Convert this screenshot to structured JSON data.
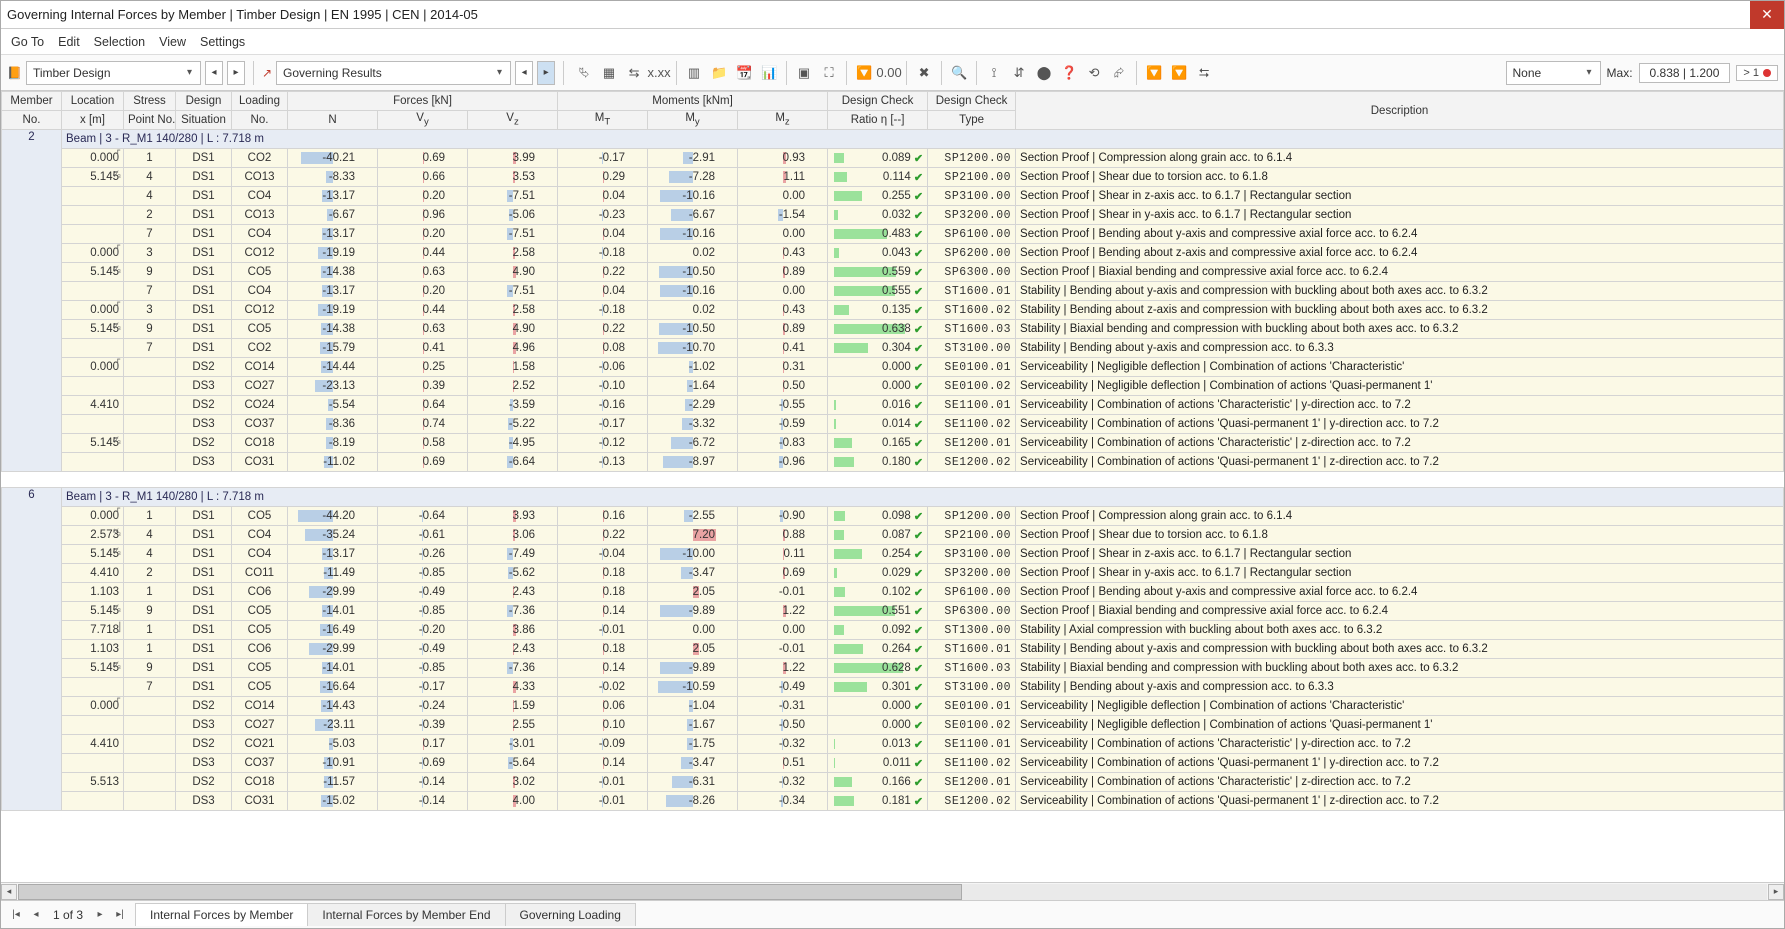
{
  "window": {
    "title": "Governing Internal Forces by Member | Timber Design | EN 1995 | CEN | 2014-05"
  },
  "menu": [
    "Go To",
    "Edit",
    "Selection",
    "View",
    "Settings"
  ],
  "toolbar": {
    "left_dropdown": "Timber Design",
    "mid_dropdown": "Governing Results",
    "filter_dropdown": "None",
    "max_label": "Max:",
    "max_value": "0.838 | 1.200",
    "limit_pill": "> 1"
  },
  "icons": [
    "⮱",
    "▦",
    "⇆",
    "x.xx",
    "▥",
    "📁",
    "📆",
    "📊",
    "▣",
    "⛶",
    "🔽",
    "0.00",
    "✖",
    "🔍",
    "⟟",
    "⇵",
    "⬤",
    "❓",
    "⟲",
    "⮳",
    "🔽",
    "🔽",
    "⮀"
  ],
  "columns": {
    "memno_top": "Member",
    "memno_bot": "No.",
    "loc_top": "Location",
    "loc_bot": "x [m]",
    "sp_top": "Stress",
    "sp_bot": "Point No.",
    "ds_top": "Design",
    "ds_bot": "Situation",
    "lo_top": "Loading",
    "lo_bot": "No.",
    "forces_label": "Forces [kN]",
    "n": "N",
    "vy": "Vy",
    "vz": "Vz",
    "moments_label": "Moments [kNm]",
    "mt": "MT",
    "my": "My",
    "mz": "Mz",
    "ratio_top": "Design Check",
    "ratio_bot": "Ratio η [--]",
    "type_top": "Design Check",
    "type_bot": "Type",
    "desc": "Description"
  },
  "norm": {
    "force": 50,
    "moment": 12,
    "ratio": 0.7
  },
  "colors": {
    "neg_bar": "#b9cfe6",
    "pos_bar": "#e9a3a3",
    "ratio_bar": "#9be29b",
    "row_bg": "#fbf9e6",
    "header_bg": "#e7ecf4"
  },
  "groups": [
    {
      "member_no": "2",
      "title": "Beam | 3 - R_M1 140/280 | L : 7.718 m",
      "rows": [
        {
          "loc": "0.000",
          "sym": "⎡",
          "sp": "1",
          "ds": "DS1",
          "lo": "CO2",
          "N": -40.21,
          "Vy": 0.69,
          "Vz": 3.99,
          "MT": -0.17,
          "My": -2.91,
          "Mz": 0.93,
          "ratio": 0.089,
          "type": "SP1200.00",
          "desc": "Section Proof | Compression along grain acc. to 6.1.4"
        },
        {
          "loc": "5.145",
          "sym": "²⁄₃",
          "sp": "4",
          "ds": "DS1",
          "lo": "CO13",
          "N": -8.33,
          "Vy": 0.66,
          "Vz": 3.53,
          "MT": 0.29,
          "My": -7.28,
          "Mz": 1.11,
          "ratio": 0.114,
          "type": "SP2100.00",
          "desc": "Section Proof | Shear due to torsion acc. to 6.1.8"
        },
        {
          "loc": "",
          "sym": "",
          "sp": "4",
          "ds": "DS1",
          "lo": "CO4",
          "N": -13.17,
          "Vy": 0.2,
          "Vz": -7.51,
          "MT": 0.04,
          "My": -10.16,
          "Mz": 0.0,
          "ratio": 0.255,
          "type": "SP3100.00",
          "desc": "Section Proof | Shear in z-axis acc. to 6.1.7 | Rectangular section"
        },
        {
          "loc": "",
          "sym": "",
          "sp": "2",
          "ds": "DS1",
          "lo": "CO13",
          "N": -6.67,
          "Vy": 0.96,
          "Vz": -5.06,
          "MT": -0.23,
          "My": -6.67,
          "Mz": -1.54,
          "ratio": 0.032,
          "type": "SP3200.00",
          "desc": "Section Proof | Shear in y-axis acc. to 6.1.7 | Rectangular section"
        },
        {
          "loc": "",
          "sym": "",
          "sp": "7",
          "ds": "DS1",
          "lo": "CO4",
          "N": -13.17,
          "Vy": 0.2,
          "Vz": -7.51,
          "MT": 0.04,
          "My": -10.16,
          "Mz": 0.0,
          "ratio": 0.483,
          "type": "SP6100.00",
          "desc": "Section Proof | Bending about y-axis and compressive axial force acc. to 6.2.4"
        },
        {
          "loc": "0.000",
          "sym": "⎡",
          "sp": "3",
          "ds": "DS1",
          "lo": "CO12",
          "N": -19.19,
          "Vy": 0.44,
          "Vz": 2.58,
          "MT": -0.18,
          "My": 0.02,
          "Mz": 0.43,
          "ratio": 0.043,
          "type": "SP6200.00",
          "desc": "Section Proof | Bending about z-axis and compressive axial force acc. to 6.2.4"
        },
        {
          "loc": "5.145",
          "sym": "²⁄₃",
          "sp": "9",
          "ds": "DS1",
          "lo": "CO5",
          "N": -14.38,
          "Vy": 0.63,
          "Vz": 4.9,
          "MT": 0.22,
          "My": -10.5,
          "Mz": 0.89,
          "ratio": 0.559,
          "type": "SP6300.00",
          "desc": "Section Proof | Biaxial bending and compressive axial force acc. to 6.2.4"
        },
        {
          "loc": "",
          "sym": "",
          "sp": "7",
          "ds": "DS1",
          "lo": "CO4",
          "N": -13.17,
          "Vy": 0.2,
          "Vz": -7.51,
          "MT": 0.04,
          "My": -10.16,
          "Mz": 0.0,
          "ratio": 0.555,
          "type": "ST1600.01",
          "desc": "Stability | Bending about y-axis and compression with buckling about both axes acc. to 6.3.2"
        },
        {
          "loc": "0.000",
          "sym": "⎡",
          "sp": "3",
          "ds": "DS1",
          "lo": "CO12",
          "N": -19.19,
          "Vy": 0.44,
          "Vz": 2.58,
          "MT": -0.18,
          "My": 0.02,
          "Mz": 0.43,
          "ratio": 0.135,
          "type": "ST1600.02",
          "desc": "Stability | Bending about z-axis and compression with buckling about both axes acc. to 6.3.2"
        },
        {
          "loc": "5.145",
          "sym": "²⁄₃",
          "sp": "9",
          "ds": "DS1",
          "lo": "CO5",
          "N": -14.38,
          "Vy": 0.63,
          "Vz": 4.9,
          "MT": 0.22,
          "My": -10.5,
          "Mz": 0.89,
          "ratio": 0.638,
          "type": "ST1600.03",
          "desc": "Stability | Biaxial bending and compression with buckling about both axes acc. to 6.3.2"
        },
        {
          "loc": "",
          "sym": "",
          "sp": "7",
          "ds": "DS1",
          "lo": "CO2",
          "N": -15.79,
          "Vy": 0.41,
          "Vz": 4.96,
          "MT": 0.08,
          "My": -10.7,
          "Mz": 0.41,
          "ratio": 0.304,
          "type": "ST3100.00",
          "desc": "Stability | Bending about y-axis and compression acc. to 6.3.3"
        },
        {
          "loc": "0.000",
          "sym": "⎡",
          "sp": "",
          "ds": "DS2",
          "lo": "CO14",
          "N": -14.44,
          "Vy": 0.25,
          "Vz": 1.58,
          "MT": -0.06,
          "My": -1.02,
          "Mz": 0.31,
          "ratio": 0.0,
          "type": "SE0100.01",
          "desc": "Serviceability | Negligible deflection | Combination of actions 'Characteristic'"
        },
        {
          "loc": "",
          "sym": "",
          "sp": "",
          "ds": "DS3",
          "lo": "CO27",
          "N": -23.13,
          "Vy": 0.39,
          "Vz": 2.52,
          "MT": -0.1,
          "My": -1.64,
          "Mz": 0.5,
          "ratio": 0.0,
          "type": "SE0100.02",
          "desc": "Serviceability | Negligible deflection | Combination of actions 'Quasi-permanent 1'"
        },
        {
          "loc": "4.410",
          "sym": "",
          "sp": "",
          "ds": "DS2",
          "lo": "CO24",
          "N": -5.54,
          "Vy": 0.64,
          "Vz": -3.59,
          "MT": -0.16,
          "My": -2.29,
          "Mz": -0.55,
          "ratio": 0.016,
          "type": "SE1100.01",
          "desc": "Serviceability | Combination of actions 'Characteristic' | y-direction acc. to 7.2"
        },
        {
          "loc": "",
          "sym": "",
          "sp": "",
          "ds": "DS3",
          "lo": "CO37",
          "N": -8.36,
          "Vy": 0.74,
          "Vz": -5.22,
          "MT": -0.17,
          "My": -3.32,
          "Mz": -0.59,
          "ratio": 0.014,
          "type": "SE1100.02",
          "desc": "Serviceability | Combination of actions 'Quasi-permanent 1' | y-direction acc. to 7.2"
        },
        {
          "loc": "5.145",
          "sym": "²⁄₃",
          "sp": "",
          "ds": "DS2",
          "lo": "CO18",
          "N": -8.19,
          "Vy": 0.58,
          "Vz": -4.95,
          "MT": -0.12,
          "My": -6.72,
          "Mz": -0.83,
          "ratio": 0.165,
          "type": "SE1200.01",
          "desc": "Serviceability | Combination of actions 'Characteristic' | z-direction acc. to 7.2"
        },
        {
          "loc": "",
          "sym": "",
          "sp": "",
          "ds": "DS3",
          "lo": "CO31",
          "N": -11.02,
          "Vy": 0.69,
          "Vz": -6.64,
          "MT": -0.13,
          "My": -8.97,
          "Mz": -0.96,
          "ratio": 0.18,
          "type": "SE1200.02",
          "desc": "Serviceability | Combination of actions 'Quasi-permanent 1' | z-direction acc. to 7.2"
        }
      ]
    },
    {
      "member_no": "6",
      "title": "Beam | 3 - R_M1 140/280 | L : 7.718 m",
      "rows": [
        {
          "loc": "0.000",
          "sym": "⎡",
          "sp": "1",
          "ds": "DS1",
          "lo": "CO5",
          "N": -44.2,
          "Vy": -0.64,
          "Vz": 3.93,
          "MT": 0.16,
          "My": -2.55,
          "Mz": -0.9,
          "ratio": 0.098,
          "type": "SP1200.00",
          "desc": "Section Proof | Compression along grain acc. to 6.1.4"
        },
        {
          "loc": "2.573",
          "sym": "¹⁄₃",
          "sp": "4",
          "ds": "DS1",
          "lo": "CO4",
          "N": -35.24,
          "Vy": -0.61,
          "Vz": 3.06,
          "MT": 0.22,
          "My": 7.2,
          "Mz": 0.88,
          "ratio": 0.087,
          "type": "SP2100.00",
          "desc": "Section Proof | Shear due to torsion acc. to 6.1.8"
        },
        {
          "loc": "5.145",
          "sym": "²⁄₃",
          "sp": "4",
          "ds": "DS1",
          "lo": "CO4",
          "N": -13.17,
          "Vy": -0.26,
          "Vz": -7.49,
          "MT": -0.04,
          "My": -10.0,
          "Mz": 0.11,
          "ratio": 0.254,
          "type": "SP3100.00",
          "desc": "Section Proof | Shear in z-axis acc. to 6.1.7 | Rectangular section"
        },
        {
          "loc": "4.410",
          "sym": "",
          "sp": "2",
          "ds": "DS1",
          "lo": "CO11",
          "N": -11.49,
          "Vy": -0.85,
          "Vz": -5.62,
          "MT": 0.18,
          "My": -3.47,
          "Mz": 0.69,
          "ratio": 0.029,
          "type": "SP3200.00",
          "desc": "Section Proof | Shear in y-axis acc. to 6.1.7 | Rectangular section"
        },
        {
          "loc": "1.103",
          "sym": "",
          "sp": "1",
          "ds": "DS1",
          "lo": "CO6",
          "N": -29.99,
          "Vy": -0.49,
          "Vz": 2.43,
          "MT": 0.18,
          "My": 2.05,
          "Mz": -0.01,
          "ratio": 0.102,
          "type": "SP6100.00",
          "desc": "Section Proof | Bending about y-axis and compressive axial force acc. to 6.2.4"
        },
        {
          "loc": "5.145",
          "sym": "²⁄₃",
          "sp": "9",
          "ds": "DS1",
          "lo": "CO5",
          "N": -14.01,
          "Vy": -0.85,
          "Vz": -7.36,
          "MT": 0.14,
          "My": -9.89,
          "Mz": 1.22,
          "ratio": 0.551,
          "type": "SP6300.00",
          "desc": "Section Proof | Biaxial bending and compressive axial force acc. to 6.2.4"
        },
        {
          "loc": "7.718",
          "sym": "⎦",
          "sp": "1",
          "ds": "DS1",
          "lo": "CO5",
          "N": -16.49,
          "Vy": -0.2,
          "Vz": 3.86,
          "MT": -0.01,
          "My": 0.0,
          "Mz": 0.0,
          "ratio": 0.092,
          "type": "ST1300.00",
          "desc": "Stability | Axial compression with buckling about both axes acc. to 6.3.2"
        },
        {
          "loc": "1.103",
          "sym": "",
          "sp": "1",
          "ds": "DS1",
          "lo": "CO6",
          "N": -29.99,
          "Vy": -0.49,
          "Vz": 2.43,
          "MT": 0.18,
          "My": 2.05,
          "Mz": -0.01,
          "ratio": 0.264,
          "type": "ST1600.01",
          "desc": "Stability | Bending about y-axis and compression with buckling about both axes acc. to 6.3.2"
        },
        {
          "loc": "5.145",
          "sym": "²⁄₃",
          "sp": "9",
          "ds": "DS1",
          "lo": "CO5",
          "N": -14.01,
          "Vy": -0.85,
          "Vz": -7.36,
          "MT": 0.14,
          "My": -9.89,
          "Mz": 1.22,
          "ratio": 0.628,
          "type": "ST1600.03",
          "desc": "Stability | Biaxial bending and compression with buckling about both axes acc. to 6.3.2"
        },
        {
          "loc": "",
          "sym": "",
          "sp": "7",
          "ds": "DS1",
          "lo": "CO5",
          "N": -16.64,
          "Vy": -0.17,
          "Vz": 4.33,
          "MT": -0.02,
          "My": -10.59,
          "Mz": -0.49,
          "ratio": 0.301,
          "type": "ST3100.00",
          "desc": "Stability | Bending about y-axis and compression acc. to 6.3.3"
        },
        {
          "loc": "0.000",
          "sym": "⎡",
          "sp": "",
          "ds": "DS2",
          "lo": "CO14",
          "N": -14.43,
          "Vy": -0.24,
          "Vz": 1.59,
          "MT": 0.06,
          "My": -1.04,
          "Mz": -0.31,
          "ratio": 0.0,
          "type": "SE0100.01",
          "desc": "Serviceability | Negligible deflection | Combination of actions 'Characteristic'"
        },
        {
          "loc": "",
          "sym": "",
          "sp": "",
          "ds": "DS3",
          "lo": "CO27",
          "N": -23.11,
          "Vy": -0.39,
          "Vz": 2.55,
          "MT": 0.1,
          "My": -1.67,
          "Mz": -0.5,
          "ratio": 0.0,
          "type": "SE0100.02",
          "desc": "Serviceability | Negligible deflection | Combination of actions 'Quasi-permanent 1'"
        },
        {
          "loc": "4.410",
          "sym": "",
          "sp": "",
          "ds": "DS2",
          "lo": "CO21",
          "N": -5.03,
          "Vy": 0.17,
          "Vz": -3.01,
          "MT": -0.09,
          "My": -1.75,
          "Mz": -0.32,
          "ratio": 0.013,
          "type": "SE1100.01",
          "desc": "Serviceability | Combination of actions 'Characteristic' | y-direction acc. to 7.2"
        },
        {
          "loc": "",
          "sym": "",
          "sp": "",
          "ds": "DS3",
          "lo": "CO37",
          "N": -10.91,
          "Vy": -0.69,
          "Vz": -5.64,
          "MT": 0.14,
          "My": -3.47,
          "Mz": 0.51,
          "ratio": 0.011,
          "type": "SE1100.02",
          "desc": "Serviceability | Combination of actions 'Quasi-permanent 1' | y-direction acc. to 7.2"
        },
        {
          "loc": "5.513",
          "sym": "",
          "sp": "",
          "ds": "DS2",
          "lo": "CO18",
          "N": -11.57,
          "Vy": -0.14,
          "Vz": 3.02,
          "MT": -0.01,
          "My": -6.31,
          "Mz": -0.32,
          "ratio": 0.166,
          "type": "SE1200.01",
          "desc": "Serviceability | Combination of actions 'Characteristic' | z-direction acc. to 7.2"
        },
        {
          "loc": "",
          "sym": "",
          "sp": "",
          "ds": "DS3",
          "lo": "CO31",
          "N": -15.02,
          "Vy": -0.14,
          "Vz": 4.0,
          "MT": -0.01,
          "My": -8.26,
          "Mz": -0.34,
          "ratio": 0.181,
          "type": "SE1200.02",
          "desc": "Serviceability | Combination of actions 'Quasi-permanent 1' | z-direction acc. to 7.2"
        }
      ]
    }
  ],
  "footer": {
    "page_text": "1 of 3",
    "tabs": [
      "Internal Forces by Member",
      "Internal Forces by Member End",
      "Governing Loading"
    ],
    "active_tab": 0
  }
}
